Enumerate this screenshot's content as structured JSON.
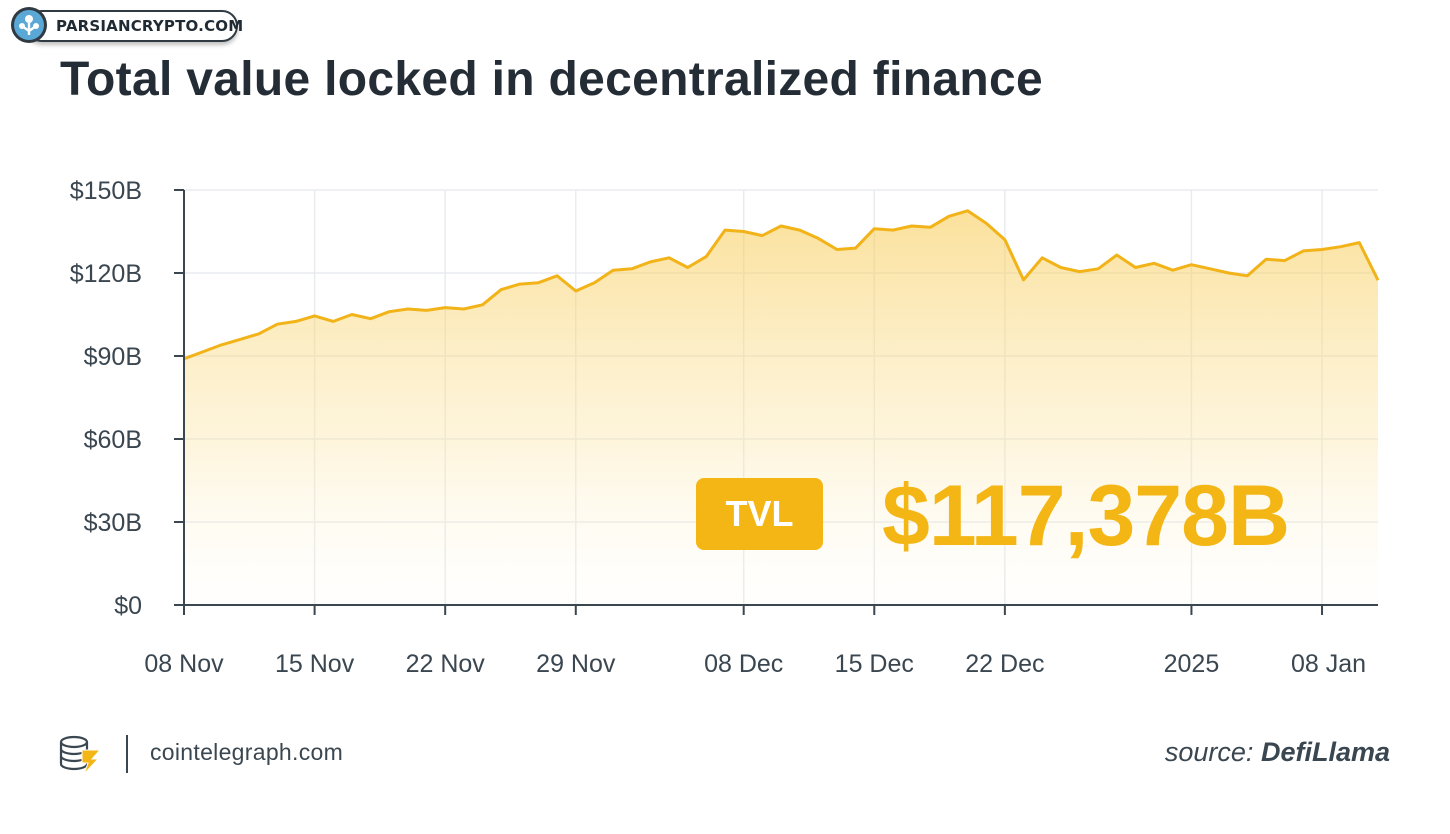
{
  "watermark": {
    "text": "PARSIANCRYPTO.COM"
  },
  "title": "Total value locked in decentralized finance",
  "tvl": {
    "label": "TVL",
    "value": "$117,378B"
  },
  "footer": {
    "site": "cointelegraph.com",
    "source_prefix": "source:",
    "source_name": "DefiLlama"
  },
  "colors": {
    "accent": "#f4b614",
    "line": "#f2b319",
    "text": "#242d35",
    "axis": "#3a4650",
    "grid": "#e9ecef"
  },
  "chart_data": {
    "type": "area",
    "title": "Total value locked in decentralized finance",
    "xlabel": "",
    "ylabel": "",
    "ylim": [
      0,
      150
    ],
    "yticks": [
      0,
      30,
      60,
      90,
      120,
      150
    ],
    "ytick_labels": [
      "$0",
      "$30B",
      "$60B",
      "$90B",
      "$120B",
      "$150B"
    ],
    "xtick_labels": [
      "08 Nov",
      "15 Nov",
      "22 Nov",
      "29 Nov",
      "08 Dec",
      "15 Dec",
      "22 Dec",
      "2025",
      "08 Jan"
    ],
    "xtick_dates": [
      "2024-11-08",
      "2024-11-15",
      "2024-11-22",
      "2024-11-29",
      "2024-12-08",
      "2024-12-15",
      "2024-12-22",
      "2025-01-01",
      "2025-01-08"
    ],
    "grid": true,
    "series": [
      {
        "x": [
          "2024-11-08",
          "2024-11-09",
          "2024-11-10",
          "2024-11-11",
          "2024-11-12",
          "2024-11-13",
          "2024-11-14",
          "2024-11-15",
          "2024-11-16",
          "2024-11-17",
          "2024-11-18",
          "2024-11-19",
          "2024-11-20",
          "2024-11-21",
          "2024-11-22",
          "2024-11-23",
          "2024-11-24",
          "2024-11-25",
          "2024-11-26",
          "2024-11-27",
          "2024-11-28",
          "2024-11-29",
          "2024-11-30",
          "2024-12-01",
          "2024-12-02",
          "2024-12-03",
          "2024-12-04",
          "2024-12-05",
          "2024-12-06",
          "2024-12-07",
          "2024-12-08",
          "2024-12-09",
          "2024-12-10",
          "2024-12-11",
          "2024-12-12",
          "2024-12-13",
          "2024-12-14",
          "2024-12-15",
          "2024-12-16",
          "2024-12-17",
          "2024-12-18",
          "2024-12-19",
          "2024-12-20",
          "2024-12-21",
          "2024-12-22",
          "2024-12-23",
          "2024-12-24",
          "2024-12-25",
          "2024-12-26",
          "2024-12-27",
          "2024-12-28",
          "2024-12-29",
          "2024-12-30",
          "2024-12-31",
          "2025-01-01",
          "2025-01-02",
          "2025-01-03",
          "2025-01-04",
          "2025-01-05",
          "2025-01-06",
          "2025-01-07",
          "2025-01-08",
          "2025-01-09",
          "2025-01-10",
          "2025-01-11"
        ],
        "values": [
          89.0,
          91.5,
          94.0,
          96.0,
          98.0,
          101.5,
          102.5,
          104.5,
          102.5,
          105.0,
          103.5,
          106.0,
          107.0,
          106.5,
          107.5,
          107.0,
          108.5,
          114.0,
          116.0,
          116.5,
          119.0,
          113.5,
          116.5,
          121.0,
          121.5,
          124.0,
          125.5,
          122.0,
          126.0,
          135.5,
          135.0,
          133.5,
          137.0,
          135.5,
          132.5,
          128.5,
          129.0,
          136.0,
          135.5,
          137.0,
          136.5,
          140.5,
          142.5,
          138.0,
          132.0,
          117.5,
          125.5,
          122.0,
          120.5,
          121.5,
          126.5,
          122.0,
          123.5,
          121.0,
          123.0,
          121.5,
          120.0,
          119.0,
          125.0,
          124.5,
          128.0,
          128.5,
          129.5,
          131.0,
          117.4
        ]
      }
    ]
  }
}
